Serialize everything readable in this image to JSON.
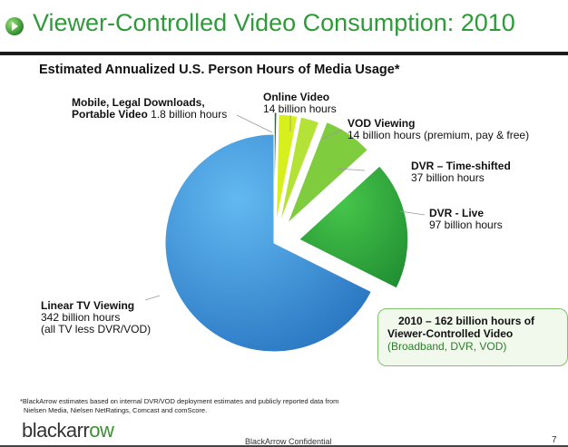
{
  "page": {
    "title": "Viewer-Controlled Video Consumption: 2010",
    "confidential": "BlackArrow Confidential",
    "page_number": "7",
    "logo": {
      "text_main": "blackarr",
      "text_accent": "ow",
      "full": "blackarrow"
    }
  },
  "labels": {
    "mobile": {
      "line1": "Mobile, Legal Downloads,",
      "line2_bold": "Portable Video",
      "line2_rest": " 1.8 billion hours"
    },
    "online": {
      "name": "Online Video",
      "value": "14 billion hours"
    },
    "vod": {
      "name": "VOD Viewing",
      "value": "14 billion hours (premium, pay & free)"
    },
    "dvr_ts": {
      "name": "DVR – Time-shifted",
      "value": "37 billion hours"
    },
    "dvr_live": {
      "name": "DVR - Live",
      "value": "97 billion hours"
    },
    "linear": {
      "name": "Linear TV Viewing",
      "value": "342 billion hours",
      "note": "(all TV less DVR/VOD)"
    }
  },
  "callout": {
    "line1": "2010 – 162 billion hours of",
    "line2": "Viewer-Controlled Video",
    "line3": "(Broadband, DVR, VOD)"
  },
  "footnote": {
    "line1": "*BlackArrow estimates based on internal DVR/VOD deployment estimates and publicly reported data from",
    "line2": "Nielsen Media, Nielsen NetRatings, Comcast and comScore."
  },
  "chart_data": {
    "type": "pie",
    "title": "Estimated Annualized U.S. Person Hours of Media Usage*",
    "unit": "billion hours",
    "slices": [
      {
        "label": "Mobile, Legal Downloads, Portable Video",
        "value": 1.8,
        "color": "#1f6b3a"
      },
      {
        "label": "Online Video",
        "value": 14,
        "color": "#d8ef1e"
      },
      {
        "label": "VOD Viewing",
        "value": 14,
        "color": "#b4e236"
      },
      {
        "label": "DVR – Time-shifted",
        "value": 37,
        "color": "#80cc3f"
      },
      {
        "label": "DVR - Live",
        "value": 97,
        "color": "#2ea83a"
      },
      {
        "label": "Linear TV Viewing",
        "value": 342,
        "color": "#3c8fd8"
      }
    ]
  }
}
